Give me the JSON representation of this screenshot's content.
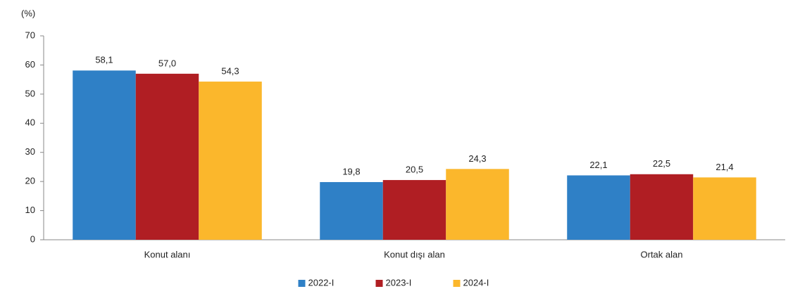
{
  "chart_data": {
    "type": "bar",
    "y_label": "(%)",
    "categories": [
      "Konut alanı",
      "Konut dışı alan",
      "Ortak alan"
    ],
    "series": [
      {
        "name": "2022-I",
        "color": "#2f80c6",
        "values": [
          58.1,
          19.8,
          22.1
        ],
        "value_labels": [
          "58,1",
          "19,8",
          "22,1"
        ]
      },
      {
        "name": "2023-I",
        "color": "#b01e23",
        "values": [
          57.0,
          20.5,
          22.5
        ],
        "value_labels": [
          "57,0",
          "20,5",
          "22,5"
        ]
      },
      {
        "name": "2024-I",
        "color": "#fbb72c",
        "values": [
          54.3,
          24.3,
          21.4
        ],
        "value_labels": [
          "54,3",
          "24,3",
          "21,4"
        ]
      }
    ],
    "ylim": [
      0,
      70
    ],
    "yticks": [
      0,
      10,
      20,
      30,
      40,
      50,
      60,
      70
    ],
    "grid": false,
    "legend": "bottom"
  }
}
